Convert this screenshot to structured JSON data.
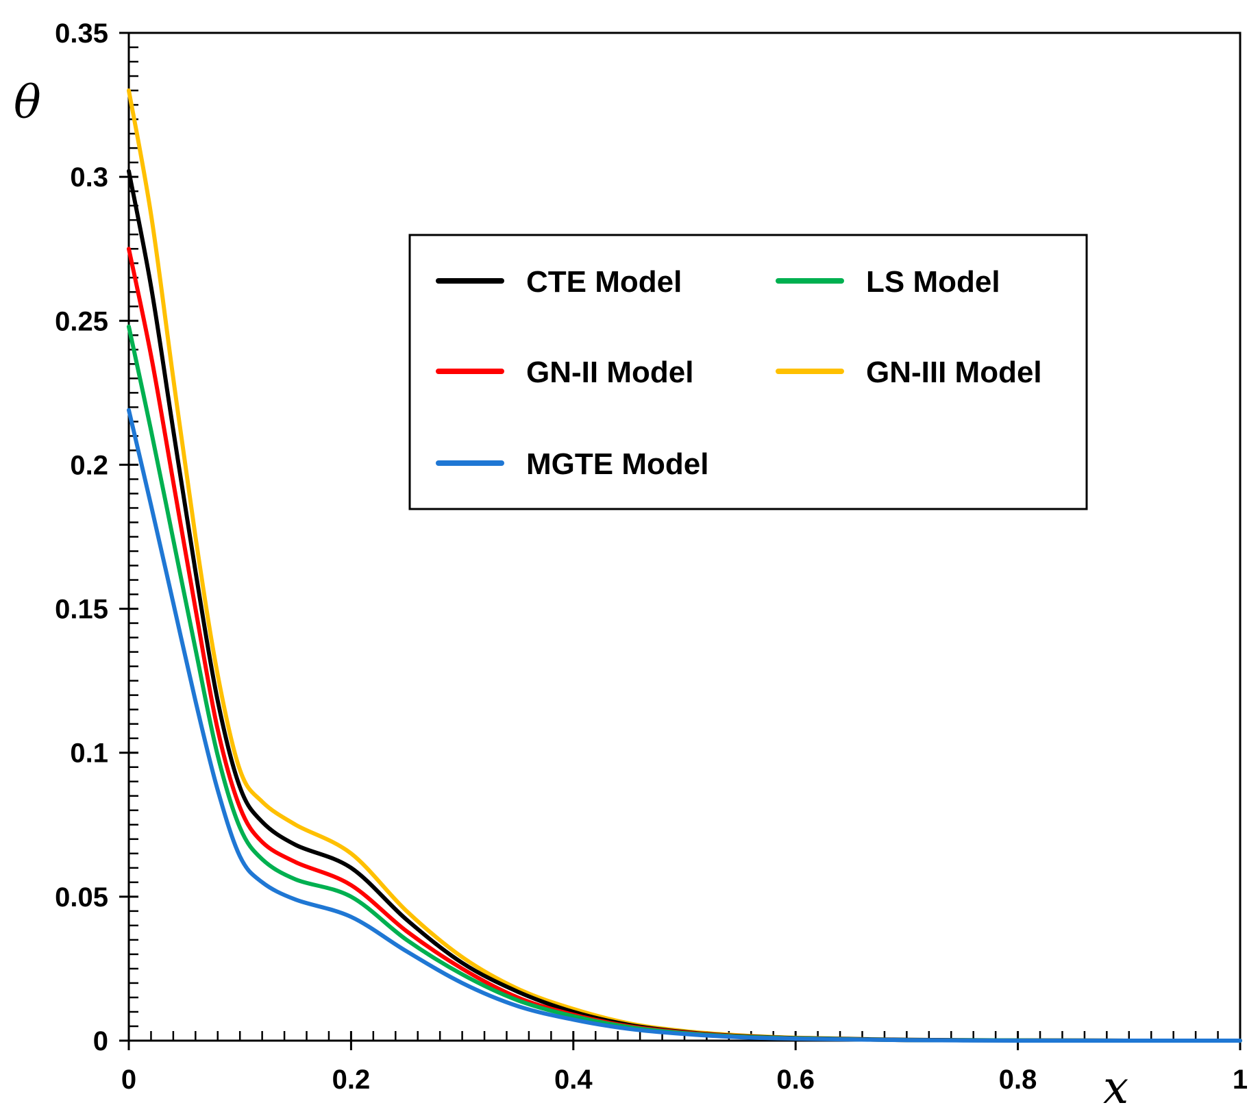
{
  "chart_data": {
    "type": "line",
    "title": "",
    "xlabel": "x",
    "ylabel": "θ",
    "xlim": [
      0,
      1
    ],
    "ylim": [
      0,
      0.35
    ],
    "x_ticks": [
      0,
      0.2,
      0.4,
      0.6,
      0.8,
      1
    ],
    "x_tick_labels": [
      "0",
      "0.2",
      "0.4",
      "0.6",
      "0.8",
      "1"
    ],
    "y_ticks": [
      0,
      0.05,
      0.1,
      0.15,
      0.2,
      0.25,
      0.3,
      0.35
    ],
    "y_tick_labels": [
      "0",
      "0.05",
      "0.1",
      "0.15",
      "0.2",
      "0.25",
      "0.3",
      "0.35"
    ],
    "grid": false,
    "legend_position": "upper-right-center",
    "x": [
      0,
      0.02,
      0.04,
      0.06,
      0.08,
      0.1,
      0.12,
      0.15,
      0.2,
      0.25,
      0.3,
      0.35,
      0.4,
      0.45,
      0.5,
      0.55,
      0.6,
      0.7,
      0.8,
      0.9,
      1.0
    ],
    "series": [
      {
        "name": "CTE Model",
        "color": "#000000",
        "values": [
          0.302,
          0.262,
          0.212,
          0.163,
          0.118,
          0.088,
          0.076,
          0.068,
          0.06,
          0.042,
          0.027,
          0.017,
          0.01,
          0.0055,
          0.003,
          0.0016,
          0.0009,
          0.0003,
          0.0001,
          0.0,
          0.0
        ]
      },
      {
        "name": "LS Model",
        "color": "#00B050",
        "values": [
          0.248,
          0.212,
          0.174,
          0.136,
          0.099,
          0.074,
          0.063,
          0.056,
          0.05,
          0.035,
          0.023,
          0.014,
          0.0085,
          0.0047,
          0.0026,
          0.0014,
          0.0008,
          0.0002,
          0.0001,
          0.0,
          0.0
        ]
      },
      {
        "name": "GN-II Model",
        "color": "#FF0000",
        "values": [
          0.275,
          0.238,
          0.194,
          0.15,
          0.108,
          0.081,
          0.069,
          0.062,
          0.054,
          0.038,
          0.025,
          0.015,
          0.009,
          0.005,
          0.0028,
          0.0015,
          0.0008,
          0.0002,
          0.0001,
          0.0,
          0.0
        ]
      },
      {
        "name": "GN-III Model",
        "color": "#FFC000",
        "values": [
          0.33,
          0.287,
          0.23,
          0.175,
          0.127,
          0.094,
          0.083,
          0.075,
          0.065,
          0.045,
          0.029,
          0.018,
          0.011,
          0.006,
          0.0033,
          0.0018,
          0.001,
          0.0003,
          0.0001,
          0.0,
          0.0
        ]
      },
      {
        "name": "MGTE Model",
        "color": "#1F77D4",
        "values": [
          0.219,
          0.186,
          0.152,
          0.118,
          0.087,
          0.064,
          0.055,
          0.049,
          0.043,
          0.031,
          0.02,
          0.012,
          0.0073,
          0.0041,
          0.0023,
          0.0012,
          0.0007,
          0.0002,
          0.0,
          0.0,
          0.0
        ]
      }
    ],
    "legend_layout": [
      [
        "CTE Model",
        "LS Model"
      ],
      [
        "GN-II Model",
        "GN-III Model"
      ],
      [
        "MGTE Model"
      ]
    ]
  }
}
